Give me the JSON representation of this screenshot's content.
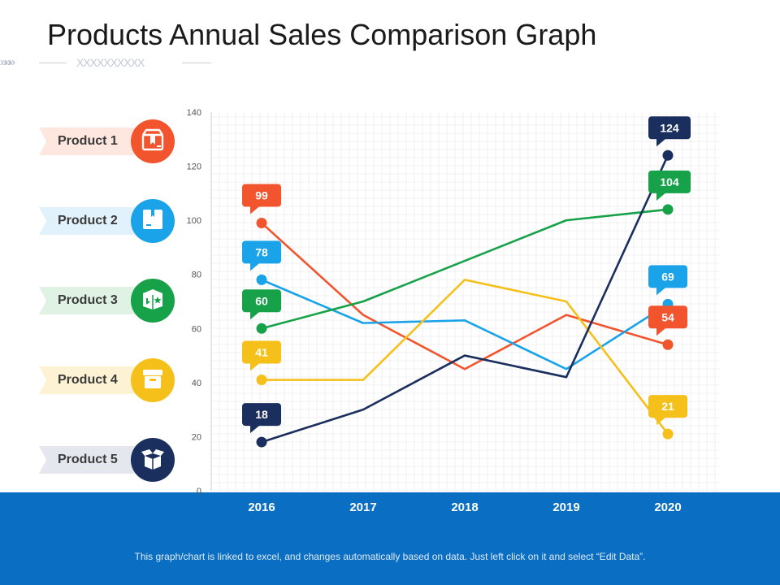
{
  "header": {
    "title": "Products Annual Sales Comparison Graph",
    "chevrons": "»»»",
    "placeholder_marks": "XXXXXXXXXX"
  },
  "legend": [
    {
      "label": "Product 1",
      "color": "#f2542d",
      "tag_bg": "#fde7df",
      "icon": "box-ribbon-icon"
    },
    {
      "label": "Product 2",
      "color": "#1aa3e8",
      "tag_bg": "#e2f2fc",
      "icon": "box-label-icon"
    },
    {
      "label": "Product 3",
      "color": "#17a24a",
      "tag_bg": "#dff2e4",
      "icon": "box-star-icon"
    },
    {
      "label": "Product 4",
      "color": "#f5c01a",
      "tag_bg": "#fdf3d4",
      "icon": "crate-icon"
    },
    {
      "label": "Product 5",
      "color": "#1b2f5e",
      "tag_bg": "#e4e7ee",
      "icon": "open-box-icon"
    }
  ],
  "chart_data": {
    "type": "line",
    "title": "Products Annual Sales Comparison Graph",
    "x": [
      "2016",
      "2017",
      "2018",
      "2019",
      "2020"
    ],
    "ylim": [
      0,
      140
    ],
    "yticks": [
      0,
      20,
      40,
      60,
      80,
      100,
      120,
      140
    ],
    "grid": true,
    "legend_position": "left",
    "series": [
      {
        "name": "Product 1",
        "color": "#f2542d",
        "values": [
          99,
          65,
          45,
          65,
          54
        ]
      },
      {
        "name": "Product 2",
        "color": "#1aa3e8",
        "values": [
          78,
          62,
          63,
          45,
          69
        ]
      },
      {
        "name": "Product 3",
        "color": "#17a24a",
        "values": [
          60,
          70,
          85,
          100,
          104
        ]
      },
      {
        "name": "Product 4",
        "color": "#f5c01a",
        "values": [
          41,
          41,
          78,
          70,
          21
        ]
      },
      {
        "name": "Product 5",
        "color": "#1b2f5e",
        "values": [
          18,
          30,
          50,
          42,
          124
        ]
      }
    ],
    "data_labels": [
      {
        "series": 0,
        "index": 0,
        "text": "99"
      },
      {
        "series": 1,
        "index": 0,
        "text": "78"
      },
      {
        "series": 2,
        "index": 0,
        "text": "60"
      },
      {
        "series": 3,
        "index": 0,
        "text": "41"
      },
      {
        "series": 4,
        "index": 0,
        "text": "18"
      },
      {
        "series": 4,
        "index": 4,
        "text": "124"
      },
      {
        "series": 2,
        "index": 4,
        "text": "104"
      },
      {
        "series": 1,
        "index": 4,
        "text": "69"
      },
      {
        "series": 0,
        "index": 4,
        "text": "54"
      },
      {
        "series": 3,
        "index": 4,
        "text": "21"
      }
    ]
  },
  "footer": {
    "note": "This graph/chart is linked to excel, and changes automatically based on data. Just left click on it and select “Edit Data”."
  }
}
